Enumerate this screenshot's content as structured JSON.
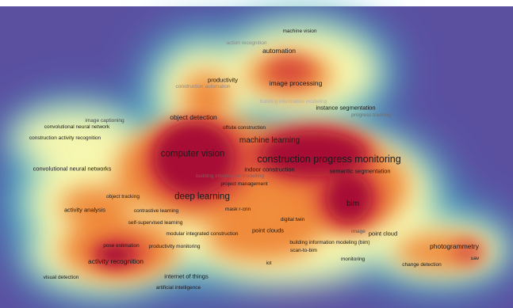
{
  "map": {
    "keywords": [
      {
        "id": "machine-vision",
        "label": "machine vision",
        "size": 0,
        "color": "#222222"
      },
      {
        "id": "action-recognition",
        "label": "action recognition",
        "size": 0,
        "color": "#8a8a8a"
      },
      {
        "id": "automation",
        "label": "automation",
        "size": 2,
        "color": "#1a1a1a"
      },
      {
        "id": "productivity",
        "label": "productivity",
        "size": 1,
        "color": "#1a1a1a"
      },
      {
        "id": "construction-automation",
        "label": "construction automation",
        "size": 0,
        "color": "#8a8a8a"
      },
      {
        "id": "image-processing",
        "label": "image processing",
        "size": 2,
        "color": "#1a1a1a"
      },
      {
        "id": "building-information-modeling-faint",
        "label": "building information modeling",
        "size": 0,
        "color": "#b0b0b0"
      },
      {
        "id": "instance-segmentation",
        "label": "instance segmentation",
        "size": 1,
        "color": "#1a1a1a"
      },
      {
        "id": "progress-tracking",
        "label": "progress tracking",
        "size": 0,
        "color": "#6e6e6e"
      },
      {
        "id": "image-captioning",
        "label": "image captioning",
        "size": 0,
        "color": "#4a4a4a"
      },
      {
        "id": "convolutional-neural-network",
        "label": "convolutional neural network",
        "size": 0,
        "color": "#1a1a1a"
      },
      {
        "id": "object-detection",
        "label": "object detection",
        "size": 2,
        "color": "#1a1a1a"
      },
      {
        "id": "offsite-construction",
        "label": "offsite construction",
        "size": 0,
        "color": "#1a1a1a"
      },
      {
        "id": "construction-activity-recognition",
        "label": "construction activity recognition",
        "size": 0,
        "color": "#1a1a1a"
      },
      {
        "id": "machine-learning",
        "label": "machine learning",
        "size": 3,
        "color": "#1a1a1a"
      },
      {
        "id": "computer-vision",
        "label": "computer vision",
        "size": 4,
        "color": "#1a1a1a"
      },
      {
        "id": "construction-progress-monitoring",
        "label": "construction progress monitoring",
        "size": 5,
        "color": "#1a1a1a"
      },
      {
        "id": "convolutional-neural-networks",
        "label": "convolutional neural networks",
        "size": 1,
        "color": "#1a1a1a"
      },
      {
        "id": "indoor-construction",
        "label": "indoor construction",
        "size": 1,
        "color": "#1a1a1a"
      },
      {
        "id": "semantic-segmentation",
        "label": "semantic segmentation",
        "size": 1,
        "color": "#1a1a1a"
      },
      {
        "id": "building-information-modelling",
        "label": "building information modelling",
        "size": 0,
        "color": "#8a5a5a"
      },
      {
        "id": "project-management",
        "label": "project management",
        "size": 0,
        "color": "#1a1a1a"
      },
      {
        "id": "object-tracking",
        "label": "object tracking",
        "size": 0,
        "color": "#1a1a1a"
      },
      {
        "id": "deep-learning",
        "label": "deep learning",
        "size": 4,
        "color": "#1a1a1a"
      },
      {
        "id": "bim",
        "label": "bim",
        "size": 3,
        "color": "#1a1a1a"
      },
      {
        "id": "activity-analysis",
        "label": "activity analysis",
        "size": 1,
        "color": "#1a1a1a"
      },
      {
        "id": "contrastive-learning",
        "label": "contrastive learning",
        "size": 0,
        "color": "#1a1a1a"
      },
      {
        "id": "mask-r-cnn",
        "label": "mask r-cnn",
        "size": 0,
        "color": "#1a1a1a"
      },
      {
        "id": "digital-twin",
        "label": "digital twin",
        "size": 0,
        "color": "#1a1a1a"
      },
      {
        "id": "self-supervised-learning",
        "label": "self-supervised learning",
        "size": 0,
        "color": "#1a1a1a"
      },
      {
        "id": "point-clouds",
        "label": "point clouds",
        "size": 1,
        "color": "#1a1a1a"
      },
      {
        "id": "image",
        "label": "image",
        "size": 0,
        "color": "#555555"
      },
      {
        "id": "point-cloud",
        "label": "point cloud",
        "size": 1,
        "color": "#1a1a1a"
      },
      {
        "id": "modular-integrated-construction",
        "label": "modular integrated construction",
        "size": 0,
        "color": "#1a1a1a"
      },
      {
        "id": "building-information-modeling-bim",
        "label": "building information modeling (bim)",
        "size": 0,
        "color": "#1a1a1a"
      },
      {
        "id": "pose-estimation",
        "label": "pose estimation",
        "size": 0,
        "color": "#1a1a1a"
      },
      {
        "id": "productivity-monitoring",
        "label": "productivity monitoring",
        "size": 0,
        "color": "#1a1a1a"
      },
      {
        "id": "scan-to-bim",
        "label": "scan-to-bim",
        "size": 0,
        "color": "#1a1a1a"
      },
      {
        "id": "photogrammetry",
        "label": "photogrammetry",
        "size": 2,
        "color": "#1a1a1a"
      },
      {
        "id": "uav",
        "label": "uav",
        "size": 0,
        "color": "#1a1a1a"
      },
      {
        "id": "activity-recognition",
        "label": "activity recognition",
        "size": 2,
        "color": "#1a1a1a"
      },
      {
        "id": "monitoring",
        "label": "monitoring",
        "size": 0,
        "color": "#1a1a1a"
      },
      {
        "id": "iot",
        "label": "iot",
        "size": 0,
        "color": "#1a1a1a"
      },
      {
        "id": "change-detection",
        "label": "change detection",
        "size": 0,
        "color": "#1a1a1a"
      },
      {
        "id": "internet-of-things",
        "label": "internet of things",
        "size": 1,
        "color": "#1a1a1a"
      },
      {
        "id": "visual-detection",
        "label": "visual detection",
        "size": 0,
        "color": "#1a1a1a"
      },
      {
        "id": "artificial-intelligence",
        "label": "artificial intelligence",
        "size": 0,
        "color": "#1a1a1a"
      }
    ],
    "colors": {
      "background": "#5b4fa0",
      "low": "#3aa8c8",
      "mid": "#f6f7b0",
      "high": "#f08a3a",
      "peak": "#a81035"
    }
  }
}
